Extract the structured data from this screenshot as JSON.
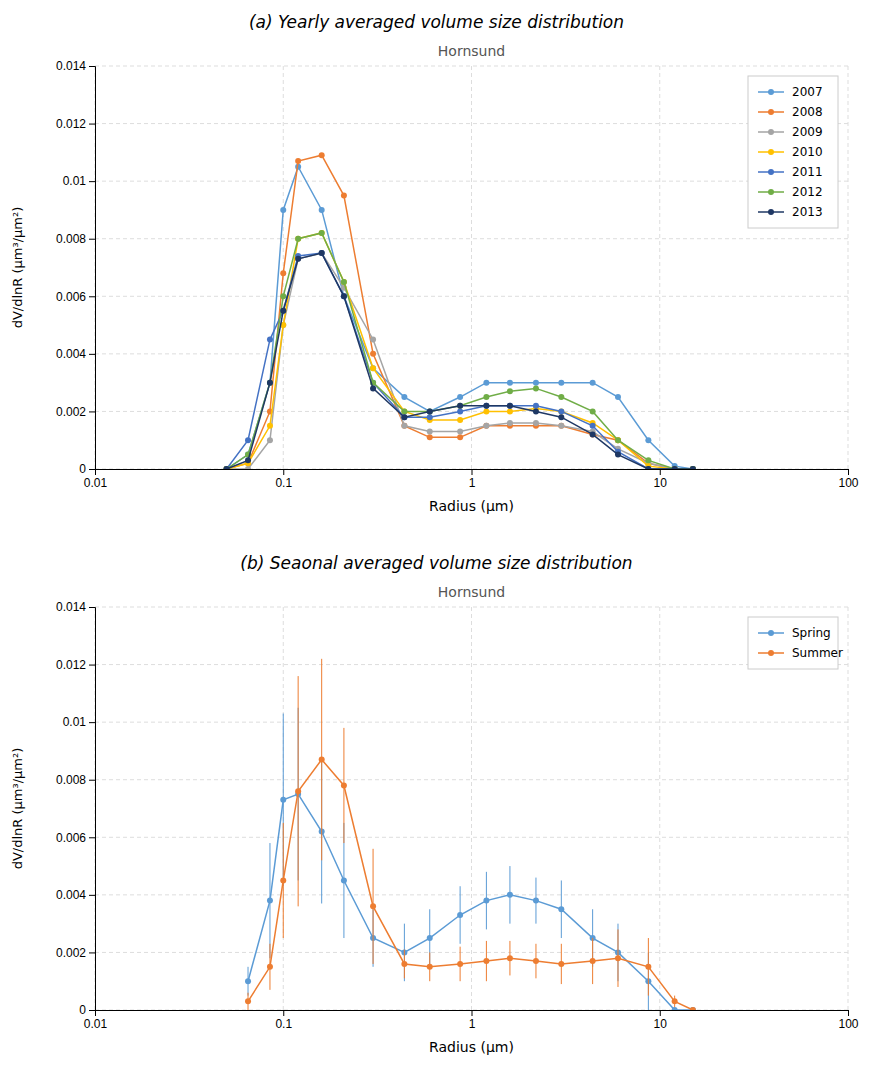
{
  "chart_data": [
    {
      "type": "line",
      "title": "(a) Yearly averaged volume size distribution",
      "subtitle": "Hornsund",
      "xlabel": "Radius (μm)",
      "ylabel": "dV/dlnR (μm³/μm²)",
      "log": "x",
      "grid": true,
      "legend": "top-right",
      "marker": "circle",
      "xlim": [
        0.01,
        100
      ],
      "xticks": [
        0.01,
        0.1,
        1,
        10,
        100
      ],
      "ylim": [
        0,
        0.014
      ],
      "yticks": [
        0,
        0.002,
        0.004,
        0.006,
        0.008,
        0.01,
        0.012,
        0.014
      ],
      "x": [
        0.05,
        0.065,
        0.085,
        0.1,
        0.12,
        0.16,
        0.21,
        0.3,
        0.44,
        0.6,
        0.87,
        1.2,
        1.6,
        2.2,
        3.0,
        4.4,
        6.0,
        8.7,
        12.0,
        15.0
      ],
      "series": [
        {
          "name": "2007",
          "color": "#5B9BD5",
          "values": [
            0.0,
            0.0005,
            0.003,
            0.009,
            0.0105,
            0.009,
            0.006,
            0.0035,
            0.0025,
            0.002,
            0.0025,
            0.003,
            0.003,
            0.003,
            0.003,
            0.003,
            0.0025,
            0.001,
            0.0001,
            0.0
          ]
        },
        {
          "name": "2008",
          "color": "#ED7D31",
          "values": [
            0.0,
            0.0002,
            0.002,
            0.0068,
            0.0107,
            0.0109,
            0.0095,
            0.004,
            0.0015,
            0.0011,
            0.0011,
            0.0015,
            0.0015,
            0.0015,
            0.0015,
            0.0012,
            0.001,
            0.0002,
            0.0,
            0.0
          ]
        },
        {
          "name": "2009",
          "color": "#A5A5A5",
          "values": [
            0.0,
            0.0,
            0.001,
            0.005,
            0.0073,
            0.0075,
            0.0063,
            0.0045,
            0.0015,
            0.0013,
            0.0013,
            0.0015,
            0.0016,
            0.0016,
            0.0015,
            0.0013,
            0.0007,
            0.0002,
            0.0,
            0.0
          ]
        },
        {
          "name": "2010",
          "color": "#FFC000",
          "values": [
            0.0,
            0.0002,
            0.0015,
            0.005,
            0.008,
            0.0082,
            0.0065,
            0.0035,
            0.002,
            0.0017,
            0.0017,
            0.002,
            0.002,
            0.0021,
            0.002,
            0.0016,
            0.001,
            0.0001,
            0.0,
            0.0
          ]
        },
        {
          "name": "2011",
          "color": "#4472C4",
          "values": [
            0.0,
            0.001,
            0.0045,
            0.0055,
            0.0074,
            0.0075,
            0.006,
            0.003,
            0.0018,
            0.0018,
            0.002,
            0.0022,
            0.0022,
            0.0022,
            0.002,
            0.0015,
            0.0006,
            0.0,
            0.0,
            0.0
          ]
        },
        {
          "name": "2012",
          "color": "#70AD47",
          "values": [
            0.0,
            0.0005,
            0.003,
            0.006,
            0.008,
            0.0082,
            0.0065,
            0.003,
            0.002,
            0.002,
            0.0022,
            0.0025,
            0.0027,
            0.0028,
            0.0025,
            0.002,
            0.001,
            0.0003,
            0.0,
            0.0
          ]
        },
        {
          "name": "2013",
          "color": "#1F3864",
          "values": [
            0.0,
            0.0003,
            0.003,
            0.0055,
            0.0073,
            0.0075,
            0.006,
            0.0028,
            0.0018,
            0.002,
            0.0022,
            0.0022,
            0.0022,
            0.002,
            0.0018,
            0.0012,
            0.0005,
            0.0,
            0.0,
            0.0
          ]
        }
      ]
    },
    {
      "type": "line",
      "title": "(b) Seaonal averaged volume size distribution",
      "subtitle": "Hornsund",
      "xlabel": "Radius (μm)",
      "ylabel": "dV/dlnR (μm³/μm²)",
      "log": "x",
      "grid": true,
      "legend": "top-right",
      "marker": "circle",
      "xlim": [
        0.01,
        100
      ],
      "xticks": [
        0.01,
        0.1,
        1,
        10,
        100
      ],
      "ylim": [
        0,
        0.014
      ],
      "yticks": [
        0,
        0.002,
        0.004,
        0.006,
        0.008,
        0.01,
        0.012,
        0.014
      ],
      "x": [
        0.065,
        0.085,
        0.1,
        0.12,
        0.16,
        0.21,
        0.3,
        0.44,
        0.6,
        0.87,
        1.2,
        1.6,
        2.2,
        3.0,
        4.4,
        6.0,
        8.7,
        12.0,
        15.0
      ],
      "series": [
        {
          "name": "Spring",
          "color": "#5B9BD5",
          "values": [
            0.001,
            0.0038,
            0.0073,
            0.0075,
            0.0062,
            0.0045,
            0.0025,
            0.002,
            0.0025,
            0.0033,
            0.0038,
            0.004,
            0.0038,
            0.0035,
            0.0025,
            0.002,
            0.001,
            0.0,
            0.0
          ],
          "errors": [
            0.0005,
            0.002,
            0.003,
            0.003,
            0.0025,
            0.002,
            0.001,
            0.001,
            0.001,
            0.001,
            0.001,
            0.001,
            0.0008,
            0.001,
            0.001,
            0.001,
            0.001,
            0.0,
            0.0
          ]
        },
        {
          "name": "Summer",
          "color": "#ED7D31",
          "values": [
            0.0003,
            0.0015,
            0.0045,
            0.0076,
            0.0087,
            0.0078,
            0.0036,
            0.0016,
            0.0015,
            0.0016,
            0.0017,
            0.0018,
            0.0017,
            0.0016,
            0.0017,
            0.0018,
            0.0015,
            0.0003,
            0.0
          ],
          "errors": [
            0.0003,
            0.0008,
            0.002,
            0.004,
            0.0035,
            0.002,
            0.002,
            0.0005,
            0.0005,
            0.0006,
            0.0007,
            0.0006,
            0.0006,
            0.0007,
            0.0008,
            0.001,
            0.001,
            0.0002,
            0.0
          ]
        }
      ]
    }
  ]
}
